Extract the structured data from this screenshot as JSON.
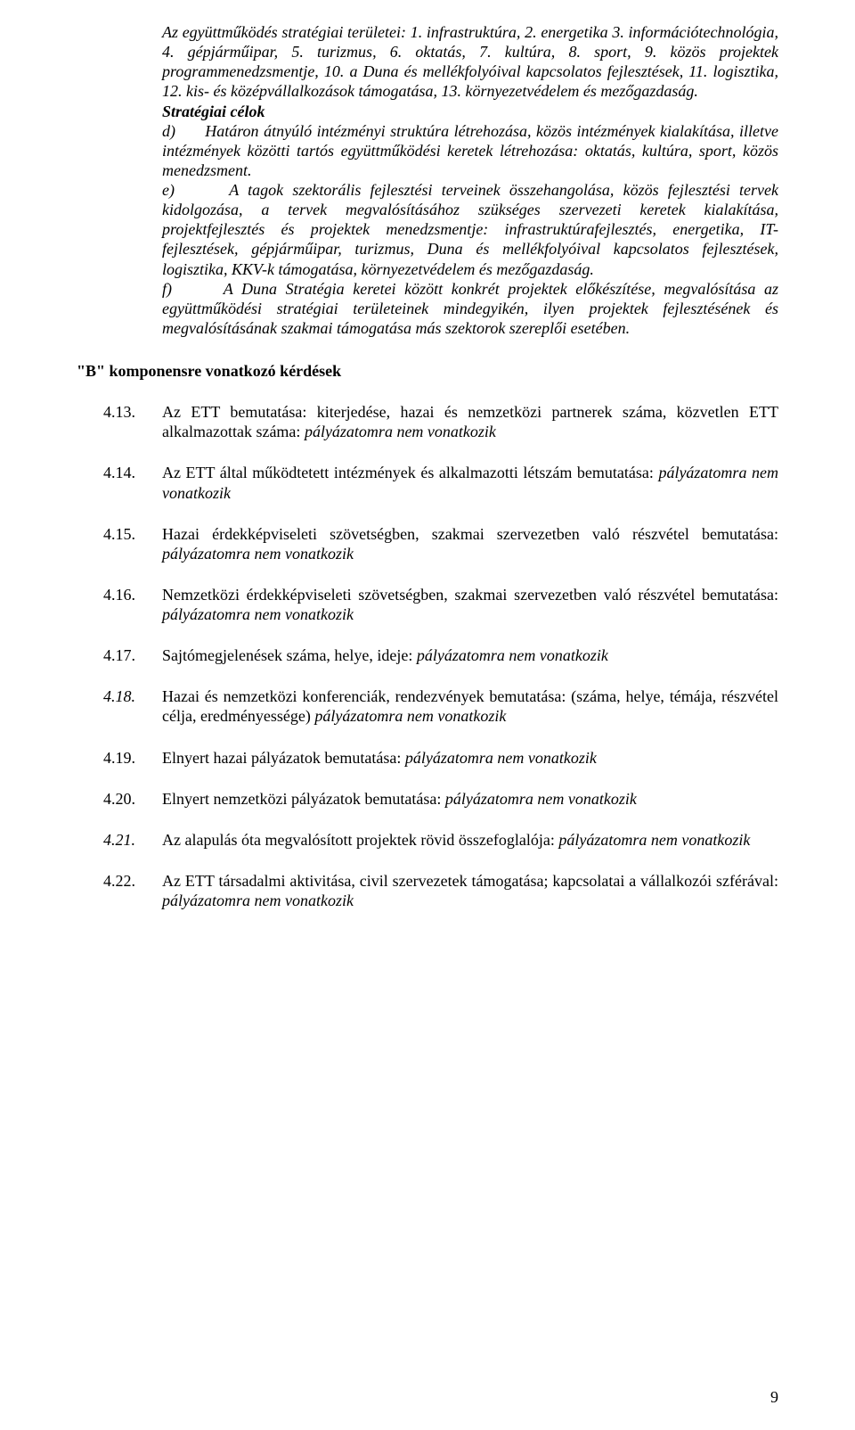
{
  "top": {
    "intro_label": "Az együttműködés stratégiai területei",
    "intro_rest": ": 1. infrastruktúra, 2. energetika 3. információtechnológia, 4. gépjárműipar, 5. turizmus, 6. oktatás, 7. kultúra, 8. sport, 9. közös projektek programmenedzsmentje, 10. a Duna és mellékfolyóival kapcsolatos fejlesztések, 11. logisztika, 12. kis- és középvállalkozások támogatása, 13. környezetvédelem és mezőgazdaság.",
    "celok_label": "Stratégiai célok",
    "d_marker": "d)",
    "d_text": "Határon átnyúló intézményi struktúra létrehozása, közös intézmények kialakítása, illetve intézmények közötti tartós együttműködési keretek létrehozása: oktatás, kultúra, sport, közös menedzsment.",
    "e_marker": "e)",
    "e_text": "A tagok szektorális fejlesztési terveinek összehangolása, közös fejlesztési tervek kidolgozása, a tervek megvalósításához szükséges szervezeti keretek kialakítása, projektfejlesztés és projektek menedzsmentje: infrastruktúrafejlesztés, energetika, IT-fejlesztések, gépjárműipar, turizmus, Duna és mellékfolyóival kapcsolatos fejlesztések, logisztika, KKV-k támogatása, környezetvédelem és mezőgazdaság.",
    "f_marker": "f)",
    "f_text": "A Duna Stratégia keretei között konkrét projektek előkészítése, megvalósítása az együttműködési stratégiai területeinek mindegyikén, ilyen projektek fejlesztésének és megvalósításának szakmai támogatása más szektorok szereplői esetében."
  },
  "section_heading": "\"B\" komponensre vonatkozó kérdések",
  "items": [
    {
      "num": "4.13.",
      "num_italic": false,
      "label": "Az ETT bemutatása: kiterjedése, hazai és nemzetközi partnerek száma, közvetlen ETT alkalmazottak száma: ",
      "answer": "pályázatomra nem vonatkozik"
    },
    {
      "num": "4.14.",
      "num_italic": false,
      "label": "Az ETT által működtetett intézmények és alkalmazotti létszám bemutatása: ",
      "answer": "pályázatomra nem vonatkozik"
    },
    {
      "num": "4.15.",
      "num_italic": false,
      "label": "Hazai érdekképviseleti szövetségben, szakmai szervezetben való részvétel bemutatása: ",
      "answer": "pályázatomra nem vonatkozik"
    },
    {
      "num": "4.16.",
      "num_italic": false,
      "label": "Nemzetközi érdekképviseleti szövetségben, szakmai szervezetben való részvétel bemutatása: ",
      "answer": "pályázatomra nem vonatkozik"
    },
    {
      "num": "4.17.",
      "num_italic": false,
      "label": "Sajtómegjelenések száma, helye, ideje: ",
      "answer": "pályázatomra nem vonatkozik"
    },
    {
      "num": "4.18.",
      "num_italic": true,
      "label": "Hazai és nemzetközi konferenciák, rendezvények bemutatása: (száma, helye, témája, részvétel célja, eredményessége) ",
      "answer": "pályázatomra nem vonatkozik"
    },
    {
      "num": "4.19.",
      "num_italic": false,
      "label": "Elnyert hazai pályázatok bemutatása: ",
      "answer": "pályázatomra nem vonatkozik"
    },
    {
      "num": "4.20.",
      "num_italic": false,
      "label": "Elnyert nemzetközi pályázatok bemutatása: ",
      "answer": "pályázatomra nem vonatkozik"
    },
    {
      "num": "4.21.",
      "num_italic": true,
      "label": "Az alapulás óta megvalósított projektek rövid összefoglalója: ",
      "answer": "pályázatomra nem vonatkozik"
    },
    {
      "num": "4.22.",
      "num_italic": false,
      "label": "Az ETT társadalmi aktivitása, civil szervezetek támogatása; kapcsolatai a vállalkozói szférával: ",
      "answer": "pályázatomra nem vonatkozik"
    }
  ],
  "page_number": "9"
}
